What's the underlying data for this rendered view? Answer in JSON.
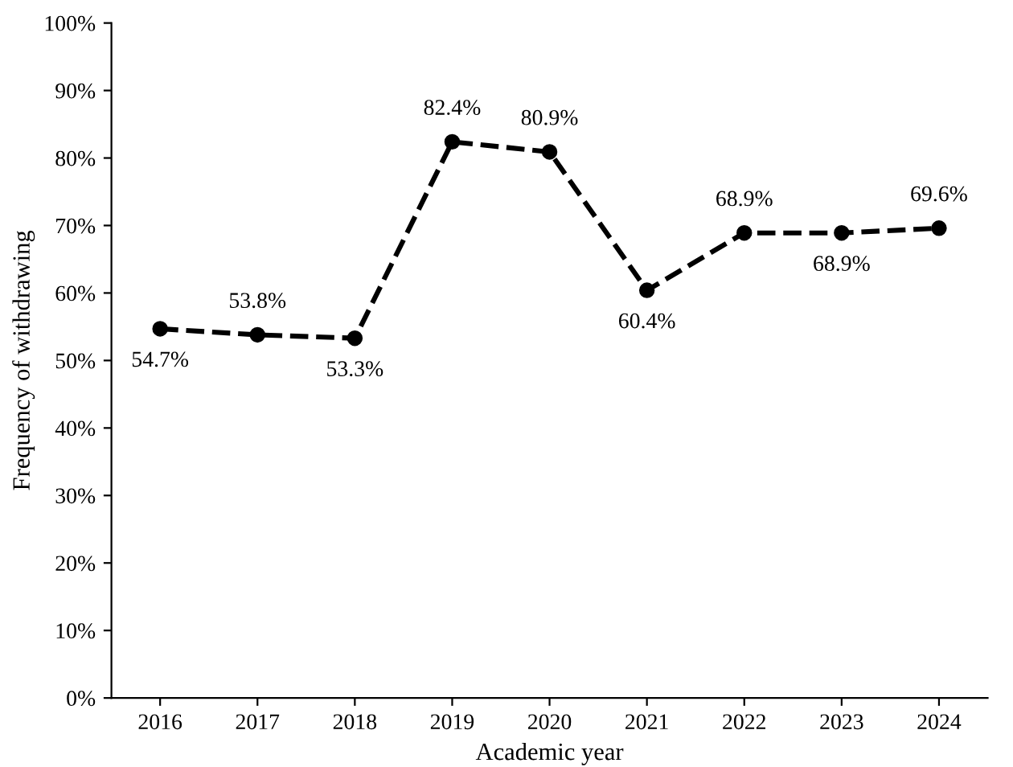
{
  "chart_data": {
    "type": "line",
    "xlabel": "Academic year",
    "ylabel": "Frequency of withdrawing",
    "categories": [
      "2016",
      "2017",
      "2018",
      "2019",
      "2020",
      "2021",
      "2022",
      "2023",
      "2024"
    ],
    "series": [
      {
        "color": "#000000",
        "values": [
          54.7,
          53.8,
          53.3,
          82.4,
          80.9,
          60.4,
          68.9,
          68.9,
          69.6
        ],
        "value_labels": [
          "54.7%",
          "53.8%",
          "53.3%",
          "82.4%",
          "80.9%",
          "60.4%",
          "68.9%",
          "68.9%",
          "69.6%"
        ]
      }
    ],
    "ylim": [
      0,
      100
    ],
    "yticks": [
      {
        "value": 0,
        "label": "0%"
      },
      {
        "value": 10,
        "label": "10%"
      },
      {
        "value": 20,
        "label": "20%"
      },
      {
        "value": 30,
        "label": "30%"
      },
      {
        "value": 40,
        "label": "40%"
      },
      {
        "value": 50,
        "label": "50%"
      },
      {
        "value": 60,
        "label": "60%"
      },
      {
        "value": 70,
        "label": "70%"
      },
      {
        "value": 80,
        "label": "80%"
      },
      {
        "value": 90,
        "label": "90%"
      },
      {
        "value": 100,
        "label": "100%"
      }
    ],
    "grid": false,
    "legend": false,
    "marker": "circle",
    "line_style": "dashed"
  }
}
